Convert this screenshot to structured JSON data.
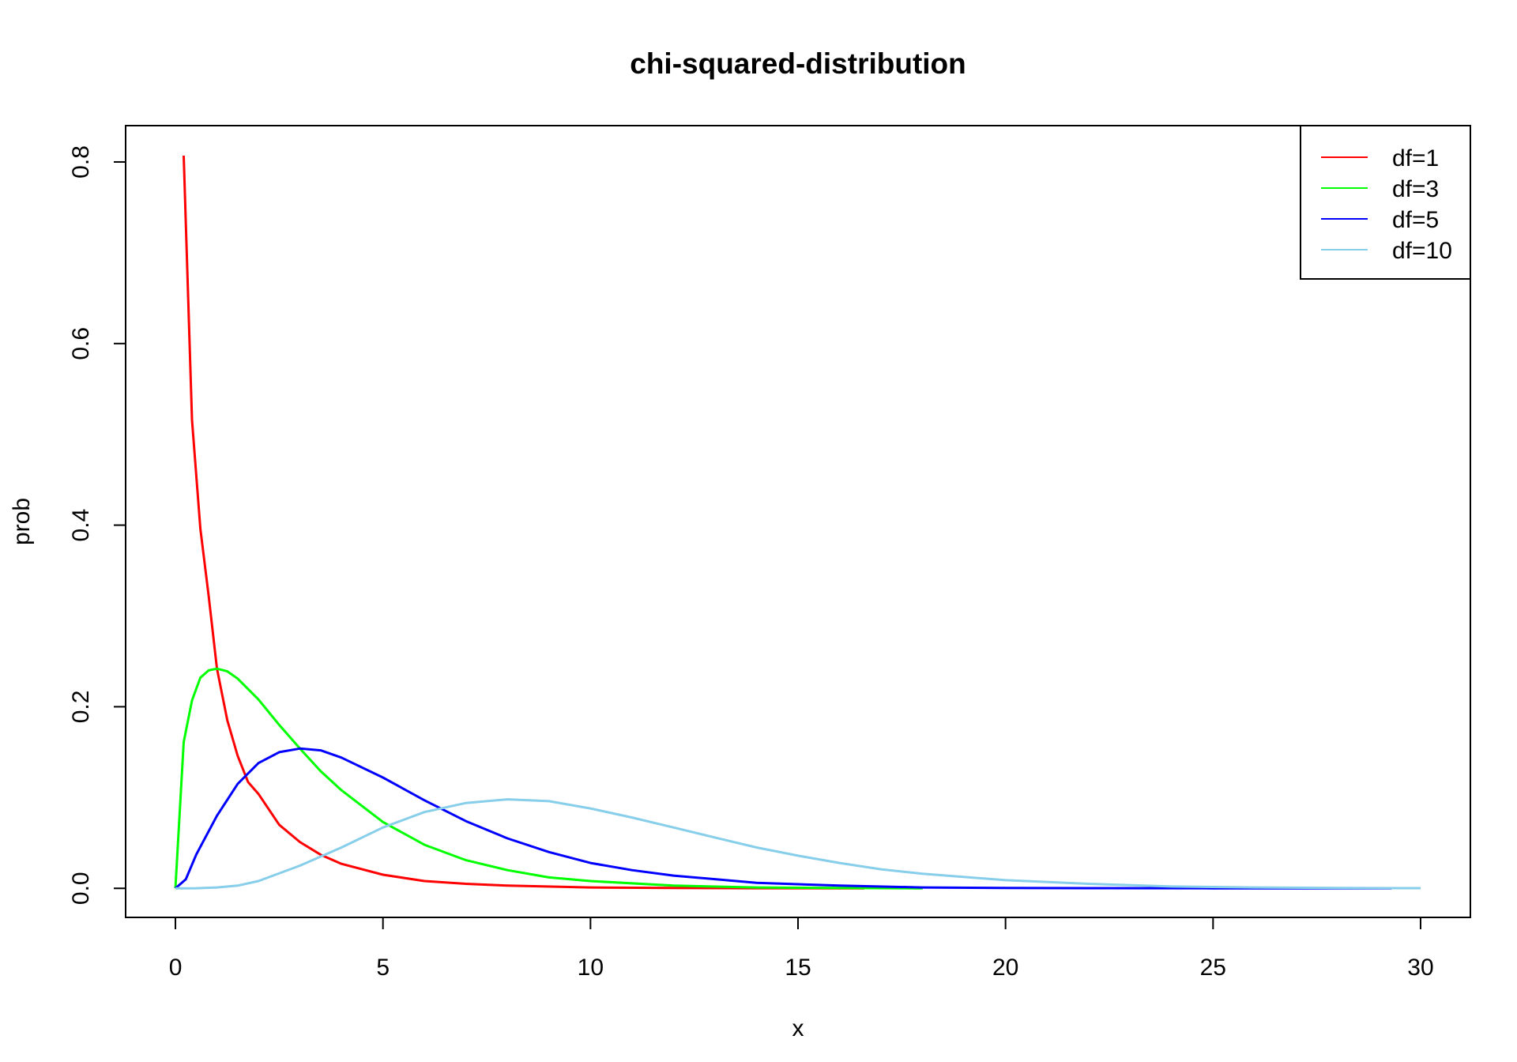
{
  "chart_data": {
    "type": "line",
    "title": "chi-squared-distribution",
    "xlabel": "x",
    "ylabel": "prob",
    "xlim": [
      -1.2,
      31.2
    ],
    "ylim": [
      -0.032,
      0.84
    ],
    "x_ticks": [
      0,
      5,
      10,
      15,
      20,
      25,
      30
    ],
    "x_tick_labels": [
      "0",
      "5",
      "10",
      "15",
      "20",
      "25",
      "30"
    ],
    "y_ticks": [
      0.0,
      0.2,
      0.4,
      0.6,
      0.8
    ],
    "y_tick_labels": [
      "0.0",
      "0.2",
      "0.4",
      "0.6",
      "0.8"
    ],
    "grid": false,
    "legend_position": "top-right",
    "series": [
      {
        "name": "df=1",
        "color": "#ff0000",
        "x": [
          0.2,
          0.4,
          0.6,
          0.8,
          1.0,
          1.25,
          1.5,
          1.75,
          2.0,
          2.5,
          3.0,
          3.5,
          4.0,
          5.0,
          6.0,
          7.0,
          8.0,
          10.0,
          12.0,
          14.0,
          16.6
        ],
        "y": [
          0.807,
          0.516,
          0.396,
          0.322,
          0.242,
          0.185,
          0.146,
          0.117,
          0.104,
          0.07,
          0.051,
          0.037,
          0.027,
          0.015,
          0.008,
          0.005,
          0.003,
          0.001,
          0.0004,
          0.0001,
          0.0
        ]
      },
      {
        "name": "df=3",
        "color": "#00ff00",
        "x": [
          0.0,
          0.2,
          0.4,
          0.6,
          0.8,
          1.0,
          1.25,
          1.5,
          2.0,
          2.5,
          3.0,
          3.5,
          4.0,
          5.0,
          6.0,
          7.0,
          8.0,
          9.0,
          10.0,
          12.0,
          14.0,
          16.0,
          18.0
        ],
        "y": [
          0.0,
          0.161,
          0.207,
          0.232,
          0.24,
          0.242,
          0.239,
          0.231,
          0.208,
          0.18,
          0.154,
          0.129,
          0.108,
          0.073,
          0.048,
          0.031,
          0.02,
          0.012,
          0.008,
          0.003,
          0.001,
          0.0004,
          0.0
        ]
      },
      {
        "name": "df=5",
        "color": "#0000ff",
        "x": [
          0.0,
          0.25,
          0.5,
          1.0,
          1.5,
          2.0,
          2.5,
          3.0,
          3.5,
          4.0,
          5.0,
          6.0,
          7.0,
          8.0,
          9.0,
          10.0,
          11.0,
          12.0,
          14.0,
          16.0,
          18.0,
          20.0,
          22.0,
          25.0,
          29.3
        ],
        "y": [
          0.0,
          0.01,
          0.037,
          0.08,
          0.115,
          0.138,
          0.15,
          0.154,
          0.152,
          0.144,
          0.122,
          0.097,
          0.074,
          0.055,
          0.04,
          0.028,
          0.02,
          0.014,
          0.006,
          0.003,
          0.001,
          0.0005,
          0.0002,
          0.0,
          0.0
        ]
      },
      {
        "name": "df=10",
        "color": "#87ceeb",
        "x": [
          0.0,
          0.5,
          1.0,
          1.5,
          2.0,
          3.0,
          4.0,
          5.0,
          6.0,
          7.0,
          8.0,
          9.0,
          10.0,
          11.0,
          12.0,
          13.0,
          14.0,
          15.0,
          16.0,
          17.0,
          18.0,
          20.0,
          22.0,
          24.0,
          26.0,
          28.0,
          30.0
        ],
        "y": [
          0.0,
          0.0001,
          0.001,
          0.003,
          0.008,
          0.025,
          0.045,
          0.067,
          0.084,
          0.094,
          0.098,
          0.096,
          0.088,
          0.078,
          0.067,
          0.056,
          0.045,
          0.036,
          0.028,
          0.021,
          0.016,
          0.009,
          0.005,
          0.002,
          0.001,
          0.0005,
          0.0002
        ]
      }
    ]
  }
}
